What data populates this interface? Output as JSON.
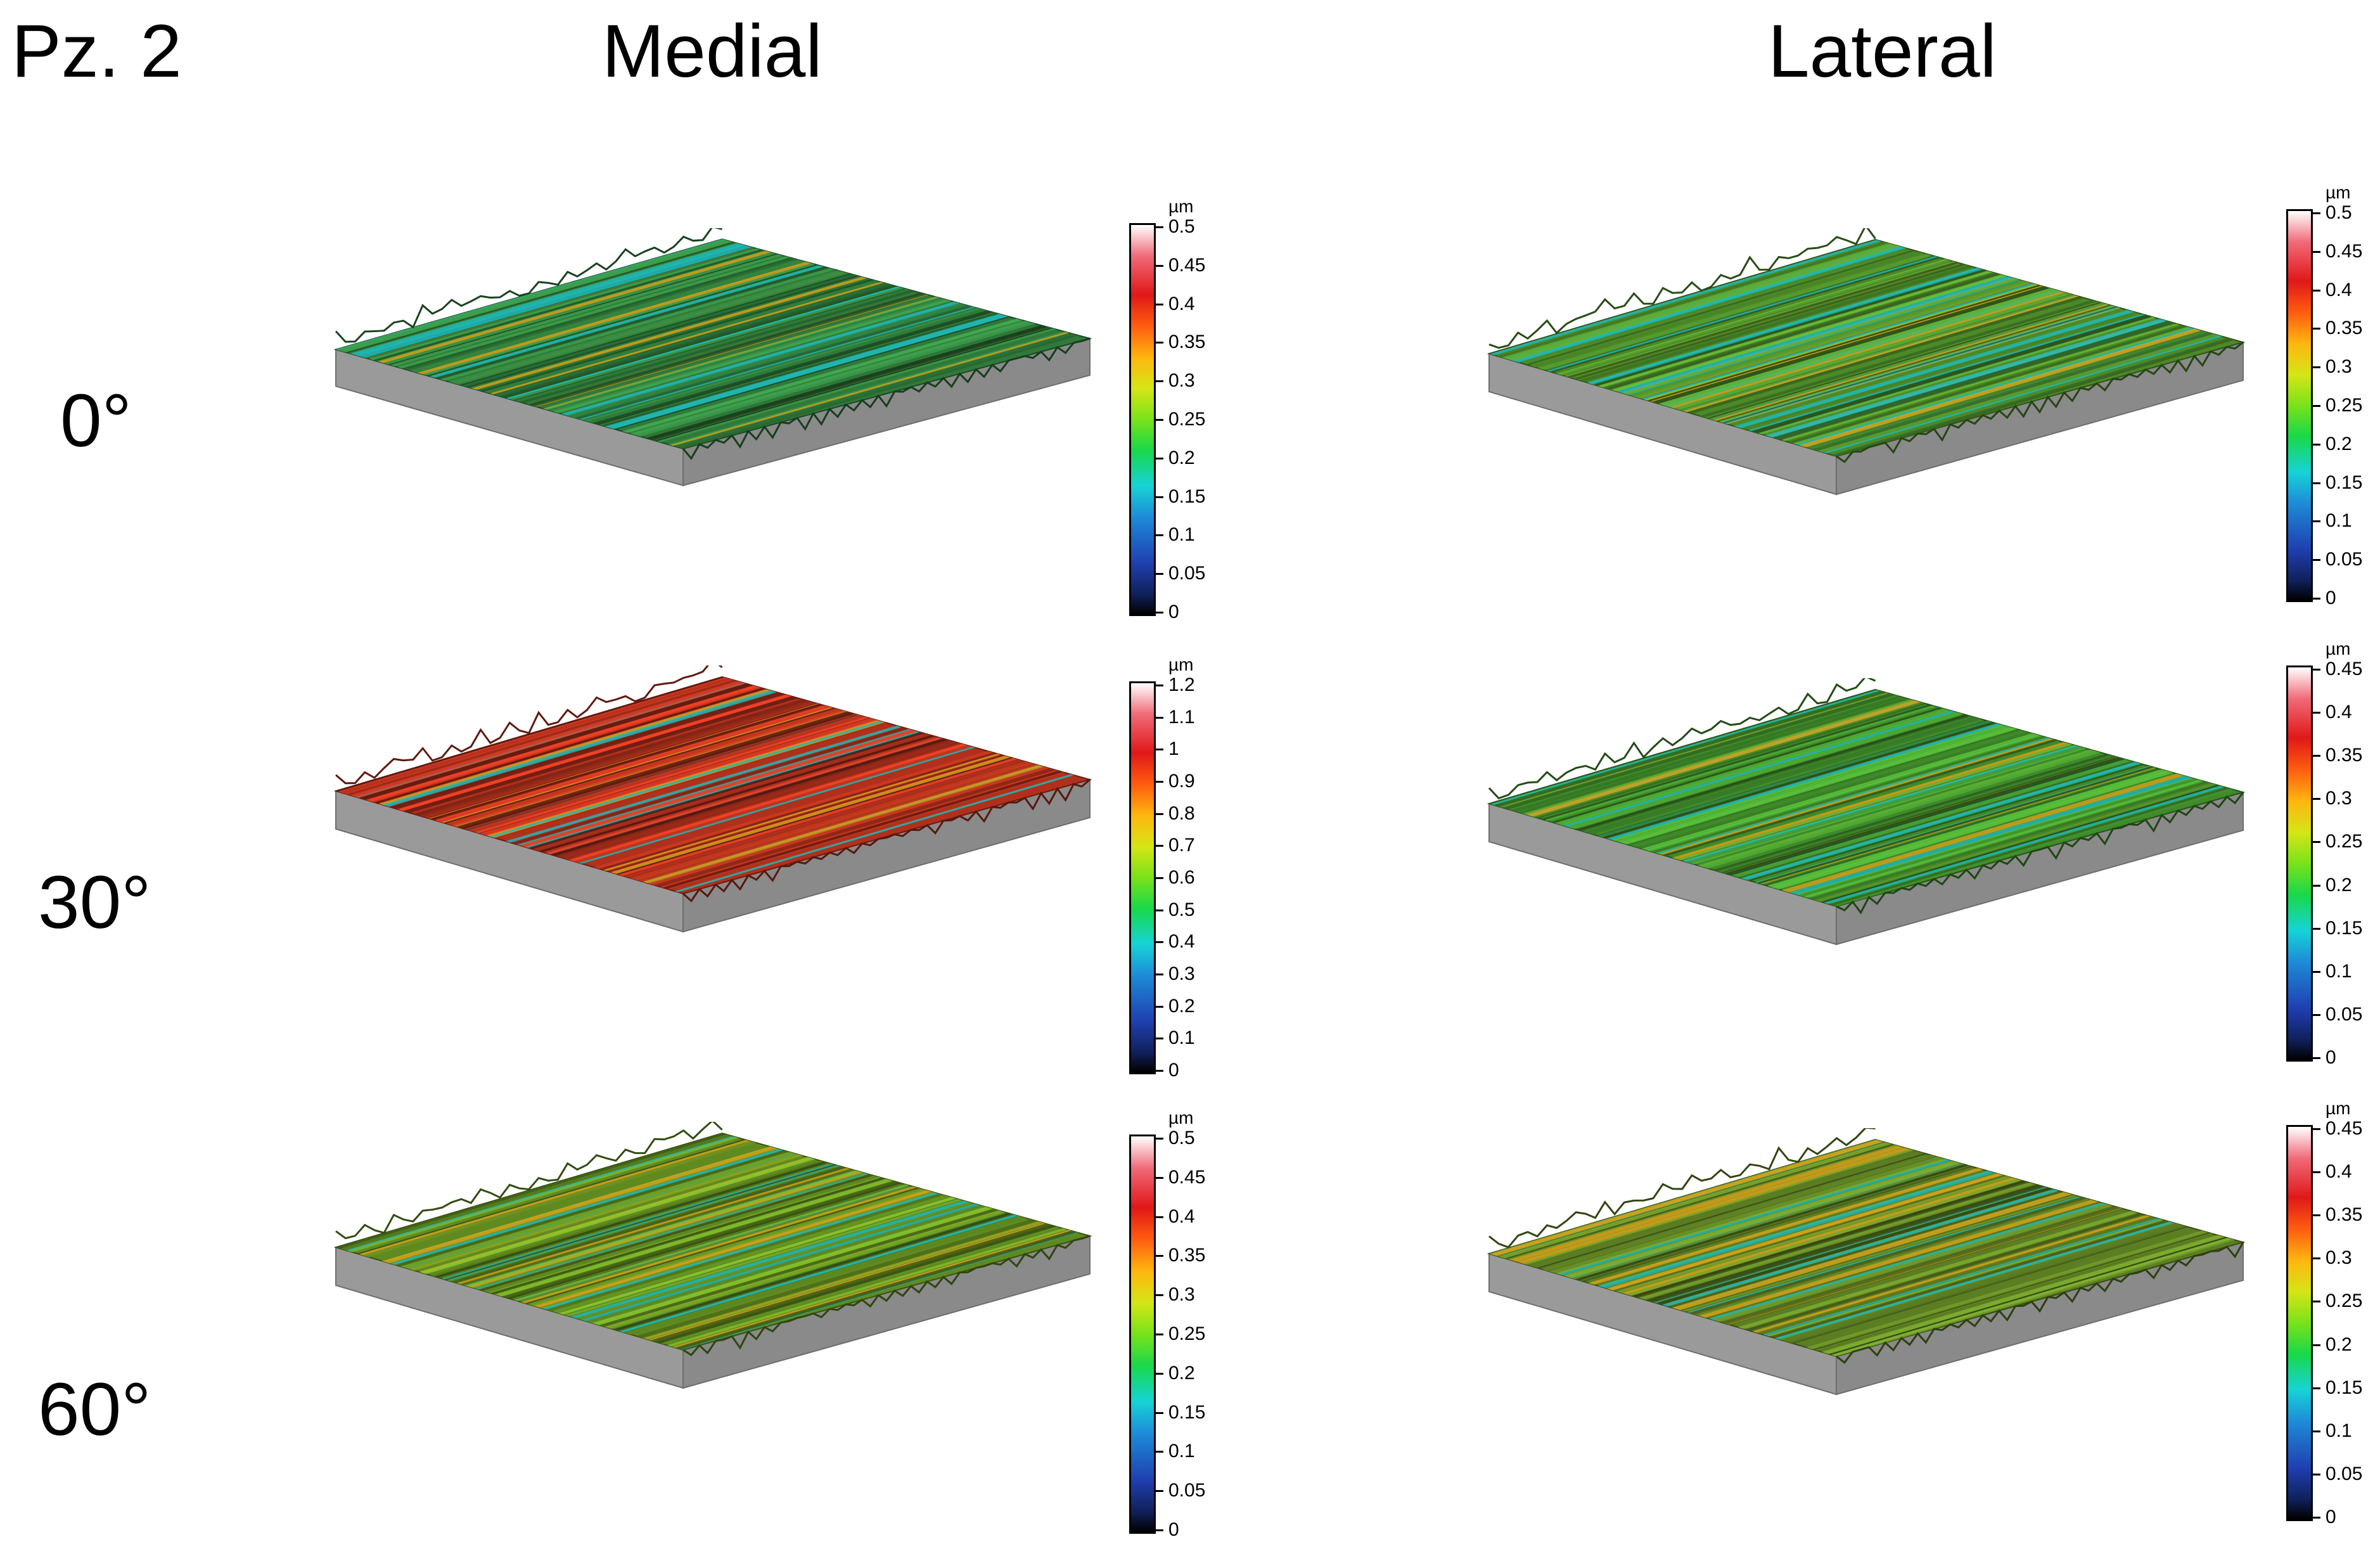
{
  "figure_label": "Pz. 2",
  "columns": [
    "Medial",
    "Lateral"
  ],
  "rows": [
    "0°",
    "30°",
    "60°"
  ],
  "unit": "µm",
  "colorbars": {
    "medial_0": [
      "0.5",
      "0.45",
      "0.4",
      "0.35",
      "0.3",
      "0.25",
      "0.2",
      "0.15",
      "0.1",
      "0.05",
      "0"
    ],
    "medial_30": [
      "1.2",
      "1.1",
      "1",
      "0.9",
      "0.8",
      "0.7",
      "0.6",
      "0.5",
      "0.4",
      "0.3",
      "0.2",
      "0.1",
      "0"
    ],
    "medial_60": [
      "0.5",
      "0.45",
      "0.4",
      "0.35",
      "0.3",
      "0.25",
      "0.2",
      "0.15",
      "0.1",
      "0.05",
      "0"
    ],
    "lateral_0": [
      "0.5",
      "0.45",
      "0.4",
      "0.35",
      "0.3",
      "0.25",
      "0.2",
      "0.15",
      "0.1",
      "0.05",
      "0"
    ],
    "lateral_30": [
      "0.45",
      "0.4",
      "0.35",
      "0.3",
      "0.25",
      "0.2",
      "0.15",
      "0.1",
      "0.05",
      "0"
    ],
    "lateral_60": [
      "0.45",
      "0.4",
      "0.35",
      "0.3",
      "0.25",
      "0.2",
      "0.15",
      "0.1",
      "0.05",
      "0"
    ]
  },
  "surface_colors": {
    "medial_0": "#2f7a3a",
    "medial_30": "#b0301c",
    "medial_60": "#5f8a20",
    "lateral_0": "#4c8a28",
    "lateral_30": "#3f8a2a",
    "lateral_60": "#5c7e22"
  }
}
